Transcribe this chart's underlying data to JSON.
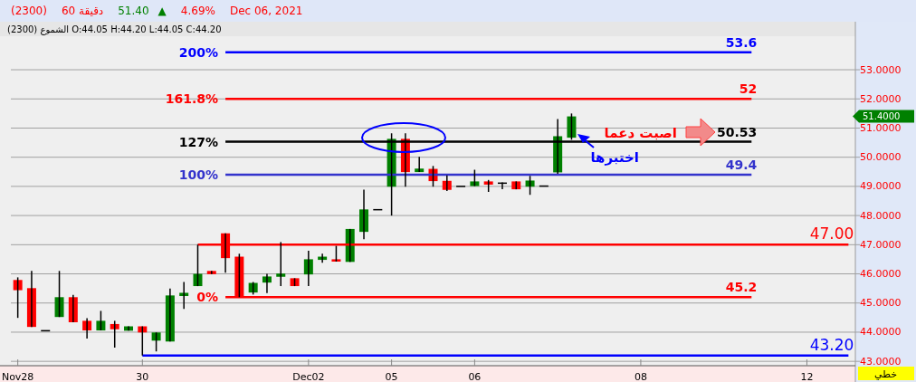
{
  "chart_data": {
    "type": "candlestick",
    "categories": [
      "Nov28",
      null,
      null,
      null,
      null,
      null,
      null,
      null,
      null,
      "30",
      null,
      null,
      null,
      null,
      null,
      null,
      null,
      null,
      null,
      null,
      null,
      "Dec02",
      null,
      null,
      null,
      null,
      null,
      "05",
      null,
      null,
      null,
      null,
      null,
      "06",
      null,
      null,
      null,
      null,
      null,
      null,
      null,
      null,
      null,
      null,
      null,
      "08",
      null,
      null,
      null,
      null,
      null,
      null,
      null,
      null,
      null,
      null,
      null,
      "12",
      null,
      null,
      null
    ],
    "ohlc": [
      [
        45.79,
        45.88,
        44.49,
        45.44
      ],
      [
        45.51,
        46.1,
        44.18,
        44.18
      ],
      [
        44.05,
        44.05,
        44.05,
        44.05
      ],
      [
        44.52,
        46.1,
        44.52,
        45.2
      ],
      [
        45.2,
        45.28,
        44.34,
        44.34
      ],
      [
        44.39,
        44.48,
        43.78,
        44.06
      ],
      [
        44.06,
        44.73,
        44.06,
        44.39
      ],
      [
        44.28,
        44.39,
        43.47,
        44.1
      ],
      [
        44.05,
        44.2,
        44.05,
        44.2
      ],
      [
        44.2,
        44.2,
        43.2,
        43.99
      ],
      [
        43.71,
        43.99,
        43.34,
        43.99
      ],
      [
        43.68,
        45.5,
        43.68,
        45.26
      ],
      [
        45.24,
        45.72,
        44.8,
        45.35
      ],
      [
        45.58,
        47.0,
        45.58,
        46.0
      ],
      [
        46.1,
        46.1,
        45.99,
        45.99
      ],
      [
        47.39,
        47.39,
        46.04,
        46.54
      ],
      [
        46.59,
        46.69,
        45.2,
        45.22
      ],
      [
        45.36,
        45.72,
        45.29,
        45.69
      ],
      [
        45.7,
        46.0,
        45.34,
        45.91
      ],
      [
        45.9,
        47.09,
        45.58,
        46.01
      ],
      [
        45.85,
        45.85,
        45.58,
        45.58
      ],
      [
        45.98,
        46.79,
        45.58,
        46.5
      ],
      [
        46.48,
        46.69,
        46.38,
        46.59
      ],
      [
        46.5,
        46.96,
        46.42,
        46.42
      ],
      [
        46.41,
        47.54,
        46.41,
        47.54
      ],
      [
        47.44,
        48.89,
        47.19,
        48.21
      ],
      [
        48.2,
        48.2,
        48.2,
        48.2
      ],
      [
        48.99,
        50.82,
        48.0,
        50.63
      ],
      [
        50.63,
        50.82,
        48.99,
        49.49
      ],
      [
        49.49,
        50.01,
        49.49,
        49.61
      ],
      [
        49.6,
        49.7,
        48.99,
        49.18
      ],
      [
        49.19,
        49.38,
        48.84,
        48.88
      ],
      [
        49.0,
        49.0,
        49.0,
        49.0
      ],
      [
        49.01,
        49.57,
        49.01,
        49.17
      ],
      [
        49.17,
        49.22,
        48.81,
        49.06
      ],
      [
        49.11,
        49.14,
        48.9,
        49.11
      ],
      [
        49.17,
        49.17,
        48.9,
        48.9
      ],
      [
        48.99,
        49.36,
        48.71,
        49.2
      ],
      [
        49.01,
        49.01,
        49.01,
        49.01
      ],
      [
        49.48,
        51.31,
        49.43,
        50.72
      ],
      [
        50.67,
        51.5,
        50.6,
        51.4
      ],
      null,
      null,
      null,
      null,
      null,
      null,
      null,
      null,
      null,
      null,
      null,
      null,
      null,
      null,
      null,
      null,
      null,
      null,
      null,
      null
    ],
    "series": [
      {
        "type": "line",
        "name": "200%",
        "color": "#0000ff",
        "values": [
          null,
          null,
          null,
          null,
          null,
          null,
          null,
          null,
          null,
          null,
          null,
          null,
          null,
          null,
          null,
          53.6,
          53.6,
          53.6,
          53.6,
          53.6,
          53.6,
          53.6,
          53.6,
          53.6,
          53.6,
          53.6,
          53.6,
          53.6,
          53.6,
          53.6,
          53.6,
          53.6,
          53.6,
          53.6,
          53.6,
          53.6,
          53.6,
          53.6,
          53.6,
          53.6,
          53.6,
          53.6,
          53.6,
          53.6,
          53.6,
          53.6,
          53.6,
          53.6,
          53.6,
          53.6,
          53.6,
          53.6,
          53.6,
          53.6,
          null,
          null,
          null,
          null,
          null,
          null,
          null
        ],
        "value_labels": [
          null,
          null,
          null,
          null,
          null,
          null,
          null,
          null,
          null,
          null,
          null,
          null,
          null,
          null,
          null,
          null,
          null,
          null,
          null,
          null,
          null,
          null,
          null,
          null,
          null,
          null,
          null,
          null,
          null,
          null,
          null,
          null,
          null,
          null,
          null,
          null,
          null,
          null,
          null,
          null,
          null,
          null,
          null,
          null,
          null,
          null,
          null,
          null,
          null,
          null,
          null,
          null,
          null,
          "53.6",
          null,
          null,
          null,
          null,
          null,
          null,
          null
        ]
      },
      {
        "type": "line",
        "name": "161.8%",
        "color": "#ff0000",
        "values": [
          null,
          null,
          null,
          null,
          null,
          null,
          null,
          null,
          null,
          null,
          null,
          null,
          null,
          null,
          null,
          52,
          52,
          52,
          52,
          52,
          52,
          52,
          52,
          52,
          52,
          52,
          52,
          52,
          52,
          52,
          52,
          52,
          52,
          52,
          52,
          52,
          52,
          52,
          52,
          52,
          52,
          52,
          52,
          52,
          52,
          52,
          52,
          52,
          52,
          52,
          52,
          52,
          52,
          52,
          null,
          null,
          null,
          null,
          null,
          null,
          null
        ],
        "value_labels": [
          null,
          null,
          null,
          null,
          null,
          null,
          null,
          null,
          null,
          null,
          null,
          null,
          null,
          null,
          null,
          null,
          null,
          null,
          null,
          null,
          null,
          null,
          null,
          null,
          null,
          null,
          null,
          null,
          null,
          null,
          null,
          null,
          null,
          null,
          null,
          null,
          null,
          null,
          null,
          null,
          null,
          null,
          null,
          null,
          null,
          null,
          null,
          null,
          null,
          null,
          null,
          null,
          null,
          "52",
          null,
          null,
          null,
          null,
          null,
          null,
          null
        ]
      },
      {
        "type": "line",
        "name": "127%",
        "color": "#000000",
        "values": [
          null,
          null,
          null,
          null,
          null,
          null,
          null,
          null,
          null,
          null,
          null,
          null,
          null,
          null,
          null,
          50.53,
          50.53,
          50.53,
          50.53,
          50.53,
          50.53,
          50.53,
          50.53,
          50.53,
          50.53,
          50.53,
          50.53,
          50.53,
          50.53,
          50.53,
          50.53,
          50.53,
          50.53,
          50.53,
          50.53,
          50.53,
          50.53,
          50.53,
          50.53,
          50.53,
          50.53,
          50.53,
          50.53,
          50.53,
          50.53,
          50.53,
          50.53,
          50.53,
          50.53,
          50.53,
          50.53,
          50.53,
          50.53,
          50.53,
          null,
          null,
          null,
          null,
          null,
          null,
          null
        ],
        "value_labels": [
          null,
          null,
          null,
          null,
          null,
          null,
          null,
          null,
          null,
          null,
          null,
          null,
          null,
          null,
          null,
          null,
          null,
          null,
          null,
          null,
          null,
          null,
          null,
          null,
          null,
          null,
          null,
          null,
          null,
          null,
          null,
          null,
          null,
          null,
          null,
          null,
          null,
          null,
          null,
          null,
          null,
          null,
          null,
          null,
          null,
          null,
          null,
          null,
          null,
          null,
          null,
          null,
          null,
          "50.53",
          null,
          null,
          null,
          null,
          null,
          null,
          null
        ]
      },
      {
        "type": "line",
        "name": "100%",
        "color": "#3333cc",
        "values": [
          null,
          null,
          null,
          null,
          null,
          null,
          null,
          null,
          null,
          null,
          null,
          null,
          null,
          null,
          null,
          49.4,
          49.4,
          49.4,
          49.4,
          49.4,
          49.4,
          49.4,
          49.4,
          49.4,
          49.4,
          49.4,
          49.4,
          49.4,
          49.4,
          49.4,
          49.4,
          49.4,
          49.4,
          49.4,
          49.4,
          49.4,
          49.4,
          49.4,
          49.4,
          49.4,
          49.4,
          49.4,
          49.4,
          49.4,
          49.4,
          49.4,
          49.4,
          49.4,
          49.4,
          49.4,
          49.4,
          49.4,
          49.4,
          49.4,
          null,
          null,
          null,
          null,
          null,
          null,
          null
        ],
        "value_labels": [
          null,
          null,
          null,
          null,
          null,
          null,
          null,
          null,
          null,
          null,
          null,
          null,
          null,
          null,
          null,
          null,
          null,
          null,
          null,
          null,
          null,
          null,
          null,
          null,
          null,
          null,
          null,
          null,
          null,
          null,
          null,
          null,
          null,
          null,
          null,
          null,
          null,
          null,
          null,
          null,
          null,
          null,
          null,
          null,
          null,
          null,
          null,
          null,
          null,
          null,
          null,
          null,
          null,
          "49.4",
          null,
          null,
          null,
          null,
          null,
          null,
          null
        ]
      },
      {
        "type": "line",
        "name": "0%",
        "color": "#ff0000",
        "values": [
          null,
          null,
          null,
          null,
          null,
          null,
          null,
          null,
          null,
          null,
          null,
          null,
          null,
          null,
          null,
          45.2,
          45.2,
          45.2,
          45.2,
          45.2,
          45.2,
          45.2,
          45.2,
          45.2,
          45.2,
          45.2,
          45.2,
          45.2,
          45.2,
          45.2,
          45.2,
          45.2,
          45.2,
          45.2,
          45.2,
          45.2,
          45.2,
          45.2,
          45.2,
          45.2,
          45.2,
          45.2,
          45.2,
          45.2,
          45.2,
          45.2,
          45.2,
          45.2,
          45.2,
          45.2,
          45.2,
          45.2,
          45.2,
          45.2,
          null,
          null,
          null,
          null,
          null,
          null,
          null
        ],
        "value_labels": [
          null,
          null,
          null,
          null,
          null,
          null,
          null,
          null,
          null,
          null,
          null,
          null,
          null,
          null,
          null,
          null,
          null,
          null,
          null,
          null,
          null,
          null,
          null,
          null,
          null,
          null,
          null,
          null,
          null,
          null,
          null,
          null,
          null,
          null,
          null,
          null,
          null,
          null,
          null,
          null,
          null,
          null,
          null,
          null,
          null,
          null,
          null,
          null,
          null,
          null,
          null,
          null,
          null,
          "45.2",
          null,
          null,
          null,
          null,
          null,
          null,
          null
        ]
      },
      {
        "type": "line",
        "color": "#ff0000",
        "values": [
          null,
          null,
          null,
          null,
          null,
          null,
          null,
          null,
          null,
          null,
          null,
          null,
          null,
          47,
          47,
          47,
          47,
          47,
          47,
          47,
          47,
          47,
          47,
          47,
          47,
          47,
          47,
          47,
          47,
          47,
          47,
          47,
          47,
          47,
          47,
          47,
          47,
          47,
          47,
          47,
          47,
          47,
          47,
          47,
          47,
          47,
          47,
          47,
          47,
          47,
          47,
          47,
          47,
          47,
          47,
          47,
          47,
          47,
          47,
          47,
          47
        ],
        "value_labels": [
          null,
          null,
          null,
          null,
          null,
          null,
          null,
          null,
          null,
          null,
          null,
          null,
          null,
          null,
          null,
          null,
          null,
          null,
          null,
          null,
          null,
          null,
          null,
          null,
          null,
          null,
          null,
          null,
          null,
          null,
          null,
          null,
          null,
          null,
          null,
          null,
          null,
          null,
          null,
          null,
          null,
          null,
          null,
          null,
          null,
          null,
          null,
          null,
          null,
          null,
          null,
          null,
          null,
          null,
          null,
          null,
          null,
          null,
          null,
          null,
          "47.00"
        ]
      },
      {
        "type": "line",
        "color": "#0000ff",
        "values": [
          null,
          null,
          null,
          null,
          null,
          null,
          null,
          null,
          null,
          43.2,
          43.2,
          43.2,
          43.2,
          43.2,
          43.2,
          43.2,
          43.2,
          43.2,
          43.2,
          43.2,
          43.2,
          43.2,
          43.2,
          43.2,
          43.2,
          43.2,
          43.2,
          43.2,
          43.2,
          43.2,
          43.2,
          43.2,
          43.2,
          43.2,
          43.2,
          43.2,
          43.2,
          43.2,
          43.2,
          43.2,
          43.2,
          43.2,
          43.2,
          43.2,
          43.2,
          43.2,
          43.2,
          43.2,
          43.2,
          43.2,
          43.2,
          43.2,
          43.2,
          43.2,
          43.2,
          43.2,
          43.2,
          43.2,
          43.2,
          43.2,
          43.2
        ],
        "value_labels": [
          null,
          null,
          null,
          null,
          null,
          null,
          null,
          null,
          null,
          null,
          null,
          null,
          null,
          null,
          null,
          null,
          null,
          null,
          null,
          null,
          null,
          null,
          null,
          null,
          null,
          null,
          null,
          null,
          null,
          null,
          null,
          null,
          null,
          null,
          null,
          null,
          null,
          null,
          null,
          null,
          null,
          null,
          null,
          null,
          null,
          null,
          null,
          null,
          null,
          null,
          null,
          null,
          null,
          null,
          null,
          null,
          null,
          null,
          null,
          null,
          "43.20"
        ]
      }
    ],
    "ylim": [
      42.85,
      54.15
    ],
    "yticks": [
      {
        "value": 43,
        "label": "43.0000"
      },
      {
        "value": 44,
        "label": "44.0000"
      },
      {
        "value": 45,
        "label": "45.0000"
      },
      {
        "value": 46,
        "label": "46.0000"
      },
      {
        "value": 47,
        "label": "47.0000"
      },
      {
        "value": 48,
        "label": "48.0000"
      },
      {
        "value": 49,
        "label": "49.0000"
      },
      {
        "value": 50,
        "label": "50.0000"
      },
      {
        "value": 51,
        "label": "51.0000"
      },
      {
        "value": 52,
        "label": "52.0000"
      },
      {
        "value": 53,
        "label": "53.0000"
      }
    ],
    "grid": "y",
    "annotations": [
      "(2300)",
      "60 دقيقة",
      "51.40",
      "▲",
      "4.69%",
      "Dec 06, 2021",
      "الشموع (2300) O:44.05 H:44.20 L:44.05 C:44.20",
      "اصبت دعما",
      "اختبرها",
      "خطي",
      "51.4000"
    ]
  }
}
